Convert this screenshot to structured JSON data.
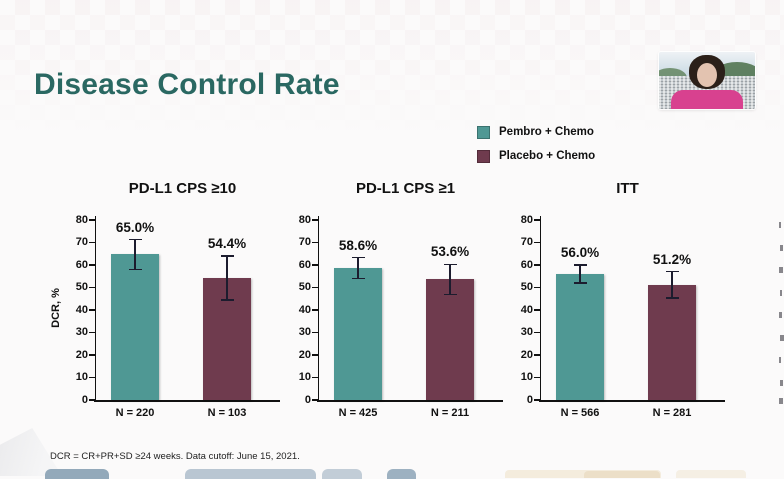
{
  "slide": {
    "title": "Disease Control Rate"
  },
  "legend": {
    "items": [
      {
        "label": "Pembro + Chemo",
        "color": "#4f9894"
      },
      {
        "label": "Placebo + Chemo",
        "color": "#6f3b4e"
      }
    ]
  },
  "footnote": "DCR = CR+PR+SD ≥24 weeks. Data cutoff: June 15, 2021.",
  "colors": {
    "title": "#2a6862",
    "bar_teal": "#4f9894",
    "bar_maroon": "#6f3b4e",
    "error_bar": "#1c1c2e",
    "axis": "#111111"
  },
  "chart_data": [
    {
      "type": "bar",
      "title": "PD-L1 CPS ≥10",
      "ylabel": "DCR, %",
      "ylim": [
        0,
        80
      ],
      "yticks": [
        0,
        10,
        20,
        30,
        40,
        50,
        60,
        70,
        80
      ],
      "grid": false,
      "bars": [
        {
          "series": "Pembro + Chemo",
          "n_label": "N = 220",
          "value": 65.0,
          "value_label": "65.0%",
          "error_low": 58.0,
          "error_high": 71.3
        },
        {
          "series": "Placebo + Chemo",
          "n_label": "N = 103",
          "value": 54.4,
          "value_label": "54.4%",
          "error_low": 44.5,
          "error_high": 64.0
        }
      ]
    },
    {
      "type": "bar",
      "title": "PD-L1 CPS ≥1",
      "ylabel": "",
      "ylim": [
        0,
        80
      ],
      "yticks": [
        0,
        10,
        20,
        30,
        40,
        50,
        60,
        70,
        80
      ],
      "grid": false,
      "bars": [
        {
          "series": "Pembro + Chemo",
          "n_label": "N = 425",
          "value": 58.6,
          "value_label": "58.6%",
          "error_low": 53.9,
          "error_high": 63.3
        },
        {
          "series": "Placebo + Chemo",
          "n_label": "N = 211",
          "value": 53.6,
          "value_label": "53.6%",
          "error_low": 46.8,
          "error_high": 60.3
        }
      ]
    },
    {
      "type": "bar",
      "title": "ITT",
      "ylabel": "",
      "ylim": [
        0,
        80
      ],
      "yticks": [
        0,
        10,
        20,
        30,
        40,
        50,
        60,
        70,
        80
      ],
      "grid": false,
      "bars": [
        {
          "series": "Pembro + Chemo",
          "n_label": "N = 566",
          "value": 56.0,
          "value_label": "56.0%",
          "error_low": 51.9,
          "error_high": 60.1
        },
        {
          "series": "Placebo + Chemo",
          "n_label": "N = 281",
          "value": 51.2,
          "value_label": "51.2%",
          "error_low": 45.3,
          "error_high": 57.1
        }
      ]
    }
  ]
}
